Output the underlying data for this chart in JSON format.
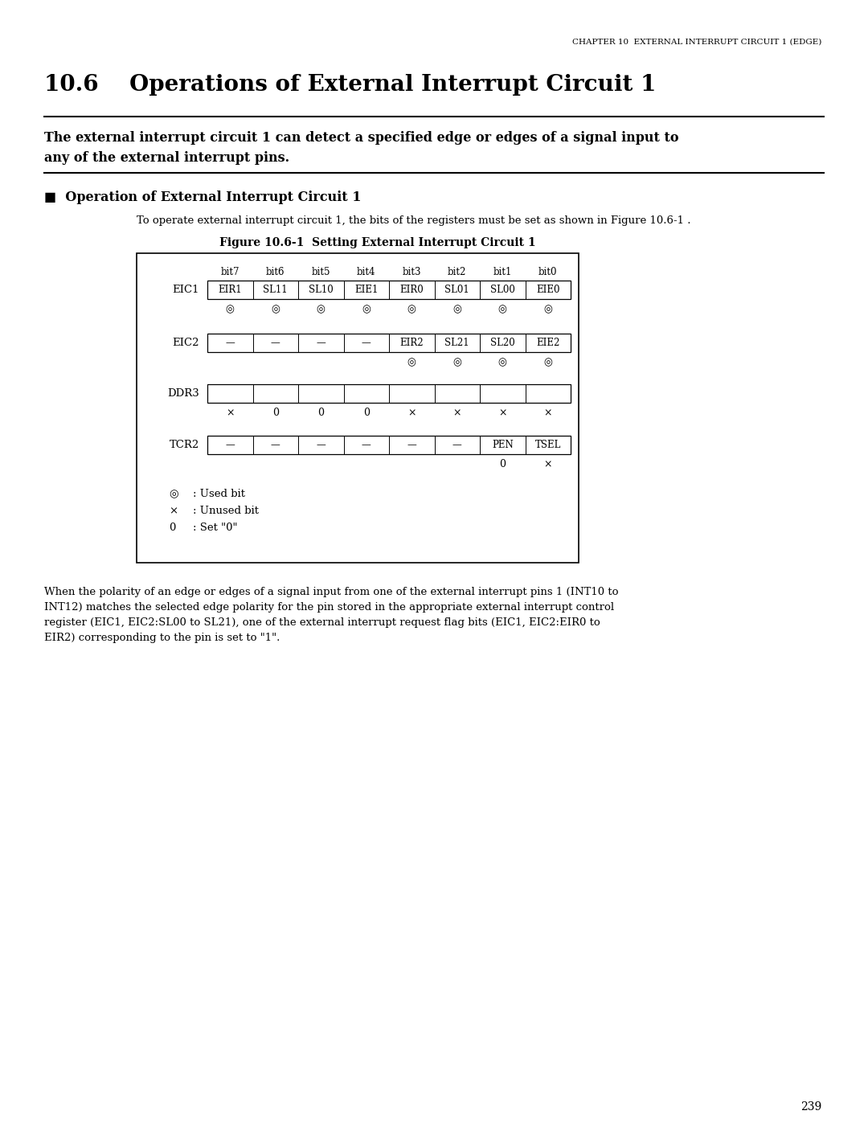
{
  "page_header": "CHAPTER 10  EXTERNAL INTERRUPT CIRCUIT 1 (EDGE)",
  "section_title": "10.6    Operations of External Interrupt Circuit 1",
  "bold_text_line1": "The external interrupt circuit 1 can detect a specified edge or edges of a signal input to",
  "bold_text_line2": "any of the external interrupt pins.",
  "subsection_title": "■  Operation of External Interrupt Circuit 1",
  "intro_text": "To operate external interrupt circuit 1, the bits of the registers must be set as shown in Figure 10.6-1 .",
  "figure_title": "Figure 10.6-1  Setting External Interrupt Circuit 1",
  "bit_labels": [
    "bit7",
    "bit6",
    "bit5",
    "bit4",
    "bit3",
    "bit2",
    "bit1",
    "bit0"
  ],
  "registers": [
    {
      "name": "EIC1",
      "cells": [
        "EIR1",
        "SL11",
        "SL10",
        "EIE1",
        "EIR0",
        "SL01",
        "SL00",
        "EIE0"
      ],
      "annotations": [
        "◎",
        "◎",
        "◎",
        "◎",
        "◎",
        "◎",
        "◎",
        "◎"
      ]
    },
    {
      "name": "EIC2",
      "cells": [
        "—",
        "—",
        "—",
        "—",
        "EIR2",
        "SL21",
        "SL20",
        "EIE2"
      ],
      "annotations": [
        "",
        "",
        "",
        "",
        "◎",
        "◎",
        "◎",
        "◎"
      ]
    },
    {
      "name": "DDR3",
      "cells": [
        "",
        "",
        "",
        "",
        "",
        "",
        "",
        ""
      ],
      "annotations": [
        "×",
        "0",
        "0",
        "0",
        "×",
        "×",
        "×",
        "×"
      ]
    },
    {
      "name": "TCR2",
      "cells": [
        "—",
        "—",
        "—",
        "—",
        "—",
        "—",
        "PEN",
        "TSEL"
      ],
      "annotations": [
        "",
        "",
        "",
        "",
        "",
        "",
        "0",
        "×"
      ]
    }
  ],
  "legend_symbols": [
    "◎",
    "×",
    "0"
  ],
  "legend_texts": [
    ": Used bit",
    ": Unused bit",
    ": Set \"0\""
  ],
  "body_text_lines": [
    "When the polarity of an edge or edges of a signal input from one of the external interrupt pins 1 (INT10 to",
    "INT12) matches the selected edge polarity for the pin stored in the appropriate external interrupt control",
    "register (EIC1, EIC2:SL00 to SL21), one of the external interrupt request flag bits (EIC1, EIC2:EIR0 to",
    "EIR2) corresponding to the pin is set to \"1\"."
  ],
  "page_number": "239",
  "bg_color": "#ffffff",
  "text_color": "#000000"
}
